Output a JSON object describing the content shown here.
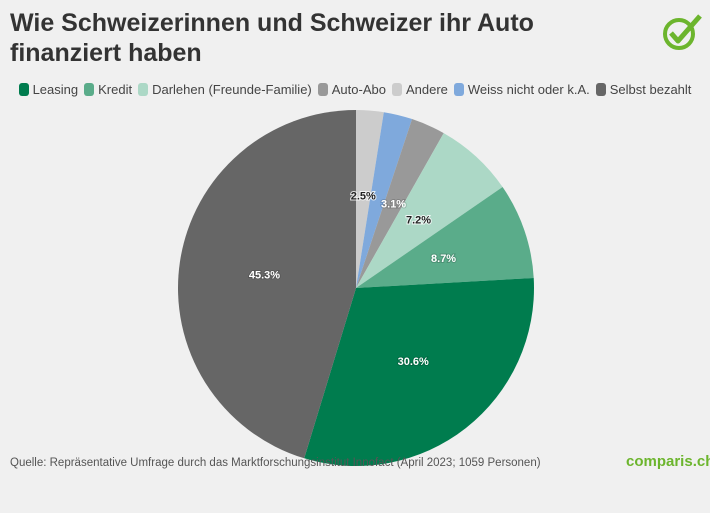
{
  "title": "Wie Schweizerinnen und Schweizer ihr Auto finanziert haben",
  "source": "Quelle: Repräsentative Umfrage durch das Marktforschungsinstitut Innofact (April 2023; 1059 Personen)",
  "brand": "comparis.ch",
  "chart_data": {
    "type": "pie",
    "legend_position": "top",
    "start": "top, clockwise",
    "slices": [
      {
        "name": "Andere",
        "value": 2.5,
        "label": "2.5%",
        "color": "#cccccc",
        "label_color": "#222222"
      },
      {
        "name": "Weiss nicht oder k.A.",
        "value": 2.6,
        "label": "",
        "color": "#7fa9dc",
        "label_color": "#ffffff"
      },
      {
        "name": "Auto-Abo",
        "value": 3.1,
        "label": "3.1%",
        "color": "#999999",
        "label_color": "#ffffff"
      },
      {
        "name": "Darlehen (Freunde-Familie)",
        "value": 7.2,
        "label": "7.2%",
        "color": "#acd8c6",
        "label_color": "#222222"
      },
      {
        "name": "Kredit",
        "value": 8.7,
        "label": "8.7%",
        "color": "#5aac8a",
        "label_color": "#ffffff"
      },
      {
        "name": "Leasing",
        "value": 30.6,
        "label": "30.6%",
        "color": "#007c4e",
        "label_color": "#ffffff"
      },
      {
        "name": "Selbst bezahlt",
        "value": 45.3,
        "label": "45.3%",
        "color": "#666666",
        "label_color": "#ffffff"
      }
    ],
    "legend_order": [
      "Leasing",
      "Kredit",
      "Darlehen (Freunde-Familie)",
      "Auto-Abo",
      "Andere",
      "Weiss nicht oder k.A.",
      "Selbst bezahlt"
    ]
  }
}
